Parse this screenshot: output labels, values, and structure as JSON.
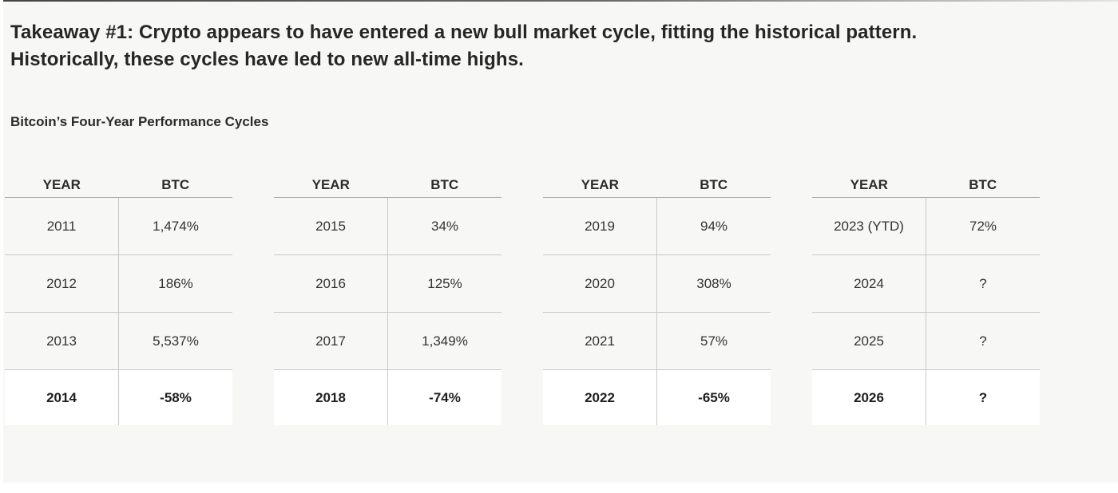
{
  "colors": {
    "panel_background": "#f7f7f5",
    "highlight_row_background": "#ffffff",
    "text": "#2d2d2d",
    "divider_line": "#c9c9c8",
    "header_underline": "#a9a9a9",
    "top_edge_line": "#454545"
  },
  "headline": {
    "lines": [
      "Takeaway #1: Crypto appears to have entered a new bull market cycle, fitting the historical pattern.",
      "Historically, these cycles have led to new all-time highs."
    ]
  },
  "subtitle": "Bitcoin’s Four-Year Performance Cycles",
  "table_headers": {
    "year": "YEAR",
    "btc": "BTC"
  },
  "tables": [
    {
      "rows": [
        {
          "year": "2011",
          "btc": "1,474%"
        },
        {
          "year": "2012",
          "btc": "186%"
        },
        {
          "year": "2013",
          "btc": "5,537%"
        },
        {
          "year": "2014",
          "btc": "-58%",
          "highlight": true
        }
      ]
    },
    {
      "rows": [
        {
          "year": "2015",
          "btc": "34%"
        },
        {
          "year": "2016",
          "btc": "125%"
        },
        {
          "year": "2017",
          "btc": "1,349%"
        },
        {
          "year": "2018",
          "btc": "-74%",
          "highlight": true
        }
      ]
    },
    {
      "rows": [
        {
          "year": "2019",
          "btc": "94%"
        },
        {
          "year": "2020",
          "btc": "308%"
        },
        {
          "year": "2021",
          "btc": "57%"
        },
        {
          "year": "2022",
          "btc": "-65%",
          "highlight": true
        }
      ]
    },
    {
      "rows": [
        {
          "year": "2023 (YTD)",
          "btc": "72%"
        },
        {
          "year": "2024",
          "btc": "?"
        },
        {
          "year": "2025",
          "btc": "?"
        },
        {
          "year": "2026",
          "btc": "?",
          "highlight": true
        }
      ]
    }
  ]
}
